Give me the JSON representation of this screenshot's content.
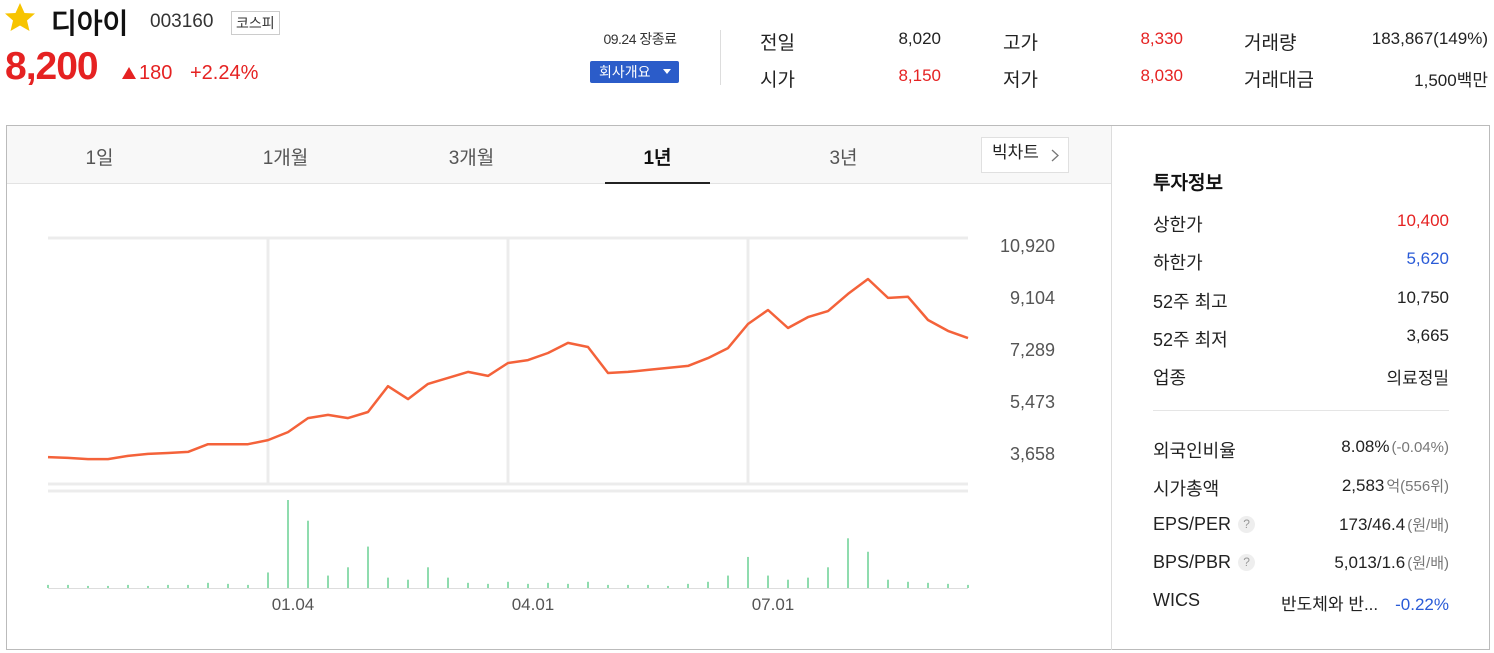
{
  "header": {
    "name": "디아이",
    "code": "003160",
    "market": "코스피",
    "price": "8,200",
    "change": "180",
    "change_rate": "+2.24%",
    "status": "09.24 장종료",
    "company_button": "회사개요"
  },
  "summary": [
    [
      {
        "label": "전일",
        "value": "8,020",
        "color": "#222222"
      },
      {
        "label": "고가",
        "value": "8,330",
        "color": "#e52222"
      },
      {
        "label": "거래량",
        "value": "183,867(149%)",
        "color": "#222222"
      }
    ],
    [
      {
        "label": "시가",
        "value": "8,150",
        "color": "#e52222"
      },
      {
        "label": "저가",
        "value": "8,030",
        "color": "#e52222"
      },
      {
        "label": "거래대금",
        "value": "1,500",
        "unit": "백만",
        "color": "#222222"
      }
    ]
  ],
  "tabs": {
    "labels": [
      "1일",
      "1개월",
      "3개월",
      "1년",
      "3년"
    ],
    "active": 3,
    "big_chart": "빅차트"
  },
  "chart_data": {
    "type": "line",
    "categories": [
      null,
      null,
      null,
      null,
      null,
      null,
      null,
      null,
      null,
      null,
      null,
      "01.04",
      null,
      null,
      null,
      null,
      null,
      null,
      null,
      null,
      null,
      null,
      null,
      "04.01",
      null,
      null,
      null,
      null,
      null,
      null,
      null,
      null,
      null,
      null,
      null,
      "07.01",
      null,
      null,
      null,
      null,
      null,
      null,
      null,
      null,
      null,
      null,
      null
    ],
    "series": [
      {
        "color": "#f4623a",
        "values": [
          3520,
          3490,
          3450,
          3450,
          3560,
          3630,
          3660,
          3700,
          3970,
          3970,
          3970,
          4110,
          4390,
          4880,
          4990,
          4880,
          5090,
          5990,
          5540,
          6070,
          6280,
          6490,
          6350,
          6800,
          6900,
          7150,
          7500,
          7360,
          6450,
          6490,
          6560,
          6630,
          6700,
          6970,
          7320,
          8160,
          8650,
          8020,
          8400,
          8610,
          9210,
          9730,
          9070,
          9110,
          8300,
          7920,
          7670
        ]
      },
      {
        "color": "#8fdcae",
        "values": [
          3,
          3,
          2,
          2,
          3,
          2,
          3,
          3,
          5,
          4,
          3,
          15,
          85,
          65,
          12,
          20,
          40,
          10,
          8,
          20,
          10,
          5,
          4,
          6,
          4,
          5,
          4,
          6,
          3,
          3,
          3,
          2,
          4,
          6,
          12,
          30,
          12,
          8,
          10,
          20,
          48,
          35,
          8,
          6,
          5,
          4,
          3
        ]
      }
    ],
    "ylim": [
      2650,
      11160
    ],
    "yticks": [
      {
        "value": 10920,
        "label": "10,920"
      },
      {
        "value": 9104,
        "label": "9,104"
      },
      {
        "value": 7289,
        "label": "7,289"
      },
      {
        "value": 5473,
        "label": "5,473"
      },
      {
        "value": 3658,
        "label": "3,658"
      }
    ]
  },
  "invest": {
    "title": "투자정보",
    "groups": [
      [
        {
          "label": "상한가",
          "value": "10,400",
          "color": "#e52222"
        },
        {
          "label": "하한가",
          "value": "5,620",
          "color": "#2a5bd7"
        },
        {
          "label": "52주 최고",
          "value": "10,750"
        },
        {
          "label": "52주 최저",
          "value": "3,665"
        },
        {
          "label": "업종",
          "value": "의료정밀"
        }
      ],
      [
        {
          "label": "외국인비율",
          "value": "8.08%",
          "note": "(-0.04%)"
        },
        {
          "label": "시가총액",
          "value": "2,583",
          "note": "억(556위)"
        },
        {
          "label": "EPS/PER",
          "help": "?",
          "value": "173/46.4",
          "note": "(원/배)"
        },
        {
          "label": "BPS/PBR",
          "help": "?",
          "value": "5,013/1.6",
          "note": "(원/배)"
        },
        {
          "label": "WICS",
          "value": "반도체와 반...",
          "extra": "-0.22%",
          "extra_color": "#2a5bd7"
        }
      ]
    ]
  }
}
